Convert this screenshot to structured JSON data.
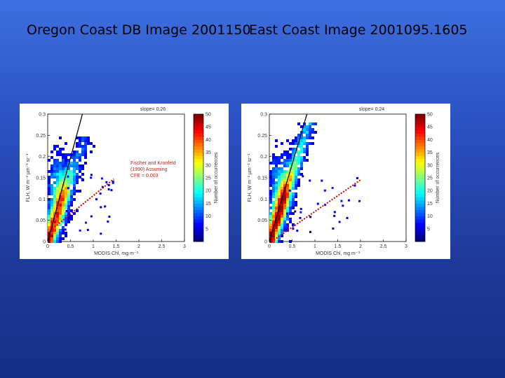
{
  "slide": {
    "title_left": "Oregon Coast DB Image 2001150",
    "title_right": "East Coast Image 2001095.1605"
  },
  "chart_data": [
    {
      "type": "heatmap",
      "title": "slope= 0.26",
      "xlabel": "MODIS Chl, mg m⁻³",
      "ylabel": "FLH, W m⁻² µm⁻¹ sr⁻¹",
      "xlim": [
        0,
        3
      ],
      "ylim": [
        0,
        0.3
      ],
      "xticks": [
        "0",
        "0.5",
        "1",
        "1.5",
        "2",
        "2.5",
        "3"
      ],
      "yticks": [
        "0",
        "0.05",
        "0.1",
        "0.15",
        "0.2",
        "0.25",
        "0.3"
      ],
      "colorbar": {
        "label": "Number of occurrences",
        "range": [
          0,
          50
        ],
        "ticks": [
          "5",
          "10",
          "15",
          "20",
          "25",
          "30",
          "35",
          "40",
          "45",
          "50"
        ]
      },
      "annotation": [
        "Fischer and Kronfeld",
        "(1990) Assuming",
        "CFE = 0.003"
      ],
      "lines": [
        {
          "name": "slope fit",
          "slope": 0.26,
          "style": "solid",
          "color": "#000000"
        },
        {
          "name": "Fischer and Kronfeld",
          "points": [
            [
              0.1,
              0.03
            ],
            [
              1.45,
              0.147
            ]
          ],
          "style": "dotted",
          "color": "#cc0000"
        }
      ],
      "density_core": {
        "x_center": 0.3,
        "slope": 0.3,
        "spread_x": 0.8,
        "max_y": 0.25
      }
    },
    {
      "type": "heatmap",
      "title": "slope= 0.24",
      "xlabel": "MODIS Chl, mg m⁻³",
      "ylabel": "FLH, W m⁻² µm⁻¹ sr⁻¹",
      "xlim": [
        0,
        3
      ],
      "ylim": [
        0,
        0.3
      ],
      "xticks": [
        "0",
        "0.5",
        "1",
        "1.5",
        "2",
        "2.5",
        "3"
      ],
      "yticks": [
        "0",
        "0.05",
        "0.1",
        "0.15",
        "0.2",
        "0.25",
        "0.3"
      ],
      "colorbar": {
        "label": "Number of occurrences",
        "range": [
          0,
          50
        ],
        "ticks": [
          "5",
          "10",
          "15",
          "20",
          "25",
          "30",
          "35",
          "40",
          "45",
          "50"
        ]
      },
      "lines": [
        {
          "name": "slope fit",
          "slope": 0.24,
          "style": "solid",
          "color": "#000000"
        },
        {
          "name": "Fischer and Kronfeld",
          "points": [
            [
              0.05,
              0.0
            ],
            [
              2.0,
              0.145
            ]
          ],
          "style": "dotted",
          "color": "#cc0000"
        }
      ],
      "density_core": {
        "x_center": 0.4,
        "slope": 0.32,
        "spread_x": 1.2,
        "max_y": 0.28
      }
    }
  ]
}
